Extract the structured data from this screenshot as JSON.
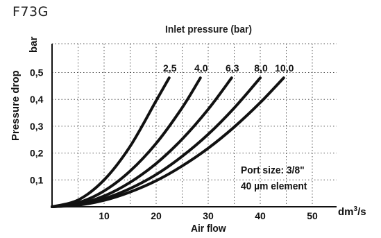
{
  "chart_data": {
    "type": "line",
    "title": "F73G",
    "subtitle": "Inlet pressure (bar)",
    "xlabel": "Air flow",
    "x_unit": "dm3/s",
    "ylabel": "Pressure drop",
    "y_unit": "bar",
    "xlim": [
      0,
      50
    ],
    "ylim": [
      0,
      0.5
    ],
    "x_ticks": [
      "10",
      "20",
      "30",
      "40",
      "50"
    ],
    "y_ticks": [
      "0,1",
      "0,2",
      "0,3",
      "0,4",
      "0,5"
    ],
    "grid": true,
    "annotations": [
      "Port size: 3/8\"",
      "40 µm element"
    ],
    "series": [
      {
        "name": "2,5",
        "x": [
          0,
          5,
          10,
          15,
          20,
          22.5
        ],
        "y": [
          0,
          0.025,
          0.1,
          0.225,
          0.395,
          0.48
        ]
      },
      {
        "name": "4,0",
        "x": [
          0,
          5,
          10,
          15,
          20,
          25,
          28.5
        ],
        "y": [
          0,
          0.015,
          0.059,
          0.133,
          0.236,
          0.369,
          0.48
        ]
      },
      {
        "name": "6,3",
        "x": [
          0,
          5,
          10,
          15,
          20,
          25,
          30,
          34.5
        ],
        "y": [
          0,
          0.01,
          0.04,
          0.091,
          0.161,
          0.252,
          0.363,
          0.48
        ]
      },
      {
        "name": "8,0",
        "x": [
          0,
          5,
          10,
          15,
          20,
          25,
          30,
          35,
          40
        ],
        "y": [
          0,
          0.008,
          0.03,
          0.068,
          0.12,
          0.188,
          0.27,
          0.368,
          0.48
        ]
      },
      {
        "name": "10,0",
        "x": [
          0,
          5,
          10,
          15,
          20,
          25,
          30,
          35,
          40,
          44.5
        ],
        "y": [
          0,
          0.006,
          0.024,
          0.055,
          0.097,
          0.152,
          0.218,
          0.297,
          0.388,
          0.48
        ]
      }
    ]
  },
  "x_unit_base": "dm",
  "x_unit_sup": "3",
  "x_unit_tail": "/s",
  "note_line1": "Port size: 3/8\"",
  "note_line2": "40 µm element"
}
